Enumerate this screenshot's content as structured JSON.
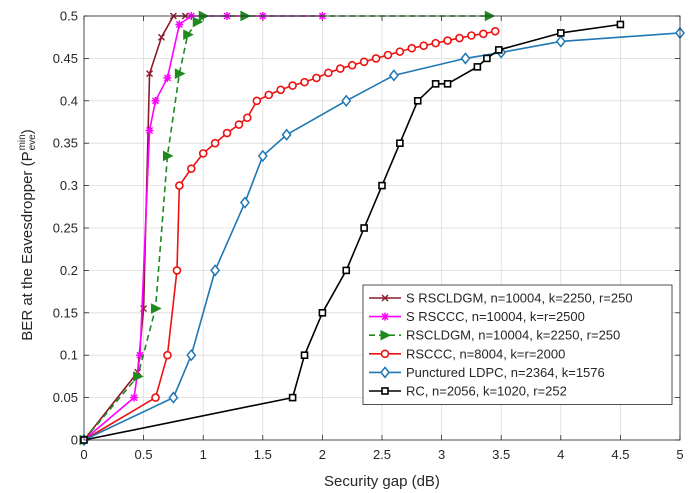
{
  "chart_data": {
    "type": "line",
    "xlabel": "Security gap (dB)",
    "ylabel": {
      "main": "BER at the Eavesdropper (P",
      "sup": "min",
      "sub": "eve",
      "close": ")"
    },
    "xlim": [
      0,
      5
    ],
    "ylim": [
      0,
      0.5
    ],
    "xticks": [
      "0",
      "0.5",
      "1",
      "1.5",
      "2",
      "2.5",
      "3",
      "3.5",
      "4",
      "4.5",
      "5"
    ],
    "yticks": [
      "0",
      "0.05",
      "0.1",
      "0.15",
      "0.2",
      "0.25",
      "0.3",
      "0.35",
      "0.4",
      "0.45",
      "0.5"
    ],
    "grid": true,
    "legend_position": "bottom-right",
    "series": [
      {
        "name": "S RSCLDGM, n=10004, k=2250, r=250",
        "color": "#8b1a2b",
        "marker": "x",
        "dash": "solid",
        "x": [
          0,
          0.45,
          0.5,
          0.55,
          0.65,
          0.75,
          0.85
        ],
        "y": [
          0,
          0.08,
          0.155,
          0.432,
          0.475,
          0.5,
          0.5
        ]
      },
      {
        "name": "S RSCCC, n=10004, k=r=2500",
        "color": "#ff00ff",
        "marker": "star",
        "dash": "solid",
        "x": [
          0,
          0.42,
          0.47,
          0.55,
          0.6,
          0.7,
          0.8,
          0.9,
          1.2,
          1.5,
          2.0
        ],
        "y": [
          0,
          0.05,
          0.1,
          0.365,
          0.4,
          0.427,
          0.49,
          0.5,
          0.5,
          0.5,
          0.5
        ]
      },
      {
        "name": "RSCLDGM, n=10004, k=2250, r=250",
        "color": "#1f8a1f",
        "marker": "triangle-right",
        "dash": "dashed",
        "x": [
          0,
          0.45,
          0.6,
          0.7,
          0.8,
          0.87,
          0.95,
          1.0,
          1.35,
          3.4
        ],
        "y": [
          0,
          0.075,
          0.155,
          0.335,
          0.432,
          0.478,
          0.493,
          0.5,
          0.5,
          0.5
        ]
      },
      {
        "name": "RSCCC, n=8004, k=r=2000",
        "color": "#ee1111",
        "marker": "circle",
        "dash": "solid",
        "x": [
          0,
          0.6,
          0.7,
          0.78,
          0.8,
          0.9,
          1.0,
          1.1,
          1.2,
          1.3,
          1.37,
          1.45,
          1.55,
          1.65,
          1.75,
          1.85,
          1.95,
          2.05,
          2.15,
          2.25,
          2.35,
          2.45,
          2.55,
          2.65,
          2.75,
          2.85,
          2.95,
          3.05,
          3.15,
          3.25,
          3.35,
          3.45
        ],
        "y": [
          0,
          0.05,
          0.1,
          0.2,
          0.3,
          0.32,
          0.338,
          0.35,
          0.362,
          0.372,
          0.38,
          0.4,
          0.407,
          0.413,
          0.418,
          0.422,
          0.427,
          0.433,
          0.438,
          0.442,
          0.446,
          0.45,
          0.454,
          0.458,
          0.462,
          0.465,
          0.468,
          0.471,
          0.474,
          0.477,
          0.479,
          0.482
        ]
      },
      {
        "name": "Punctured LDPC, n=2364, k=1576",
        "color": "#1f77b4",
        "marker": "diamond",
        "dash": "solid",
        "x": [
          0,
          0.75,
          0.9,
          1.1,
          1.35,
          1.5,
          1.7,
          2.2,
          2.6,
          3.2,
          3.5,
          4.0,
          5.0
        ],
        "y": [
          0,
          0.05,
          0.1,
          0.2,
          0.28,
          0.335,
          0.36,
          0.4,
          0.43,
          0.45,
          0.457,
          0.47,
          0.48
        ]
      },
      {
        "name": "RC, n=2056, k=1020, r=252",
        "color": "#000000",
        "marker": "square",
        "dash": "solid",
        "x": [
          0,
          1.75,
          1.85,
          2.0,
          2.2,
          2.35,
          2.5,
          2.65,
          2.8,
          2.95,
          3.05,
          3.3,
          3.38,
          3.48,
          4.0,
          4.5
        ],
        "y": [
          0,
          0.05,
          0.1,
          0.15,
          0.2,
          0.25,
          0.3,
          0.35,
          0.4,
          0.42,
          0.42,
          0.44,
          0.45,
          0.46,
          0.48,
          0.49
        ]
      }
    ]
  }
}
